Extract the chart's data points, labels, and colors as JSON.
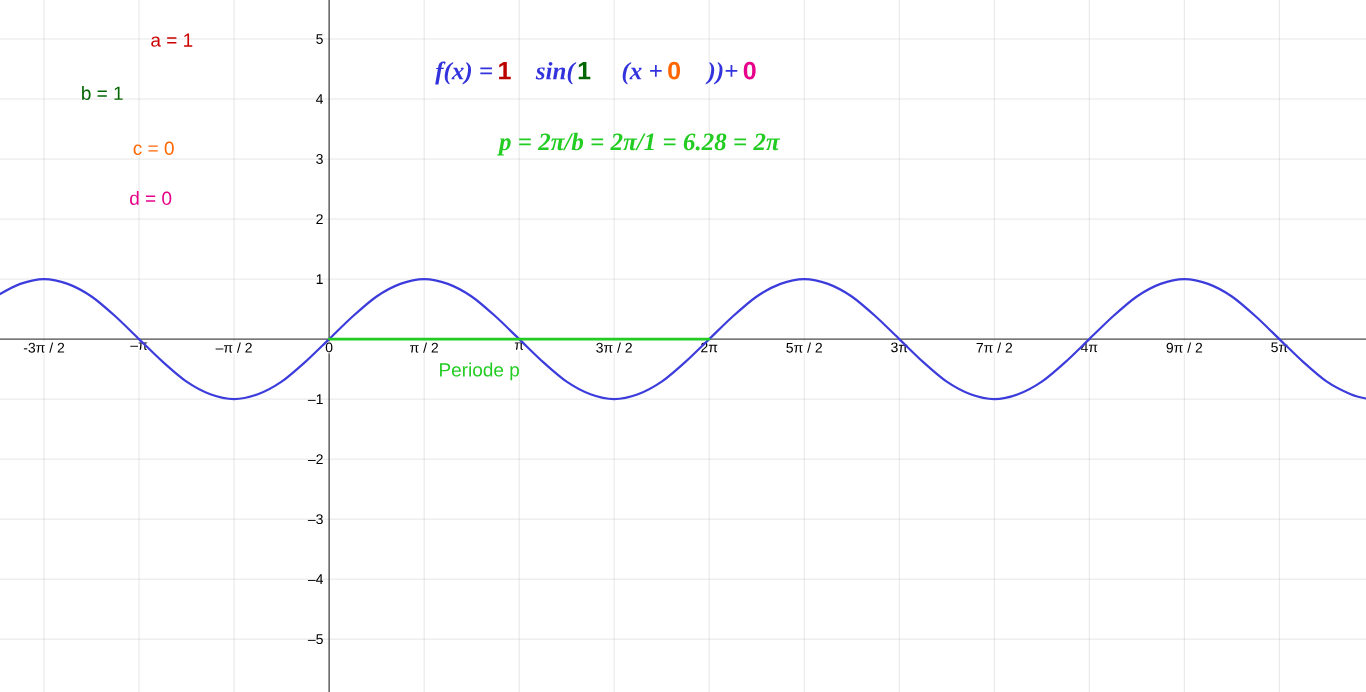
{
  "chart_data": {
    "type": "line",
    "series": [
      {
        "color": "#3c3cdc",
        "x": [
          -5.44,
          -5.105,
          -4.712,
          -4.32,
          -3.927,
          -3.534,
          -3.142,
          -2.749,
          -2.356,
          -1.963,
          -1.571,
          -1.178,
          -0.785,
          -0.393,
          0,
          0.393,
          0.785,
          1.178,
          1.571,
          1.963,
          2.356,
          2.749,
          3.142,
          3.534,
          3.927,
          4.32,
          4.712,
          5.105,
          5.498,
          5.89,
          6.283,
          6.676,
          7.069,
          7.461,
          7.854,
          8.247,
          8.639,
          9.032,
          9.425,
          9.817,
          10.21,
          10.603,
          10.996,
          11.388,
          11.781,
          12.174,
          12.566,
          12.959,
          13.352,
          13.744,
          14.137,
          14.53,
          14.923,
          15.315,
          15.708,
          16.101,
          16.493,
          16.886,
          17.14
        ],
        "values": [
          0.75,
          0.92,
          1,
          0.92,
          0.71,
          0.38,
          0,
          -0.38,
          -0.71,
          -0.92,
          -1,
          -0.92,
          -0.71,
          -0.38,
          0,
          0.38,
          0.71,
          0.92,
          1,
          0.92,
          0.71,
          0.38,
          0,
          -0.38,
          -0.71,
          -0.92,
          -1,
          -0.92,
          -0.71,
          -0.38,
          0,
          0.38,
          0.71,
          0.92,
          1,
          0.92,
          0.71,
          0.38,
          0,
          -0.38,
          -0.71,
          -0.92,
          -1,
          -0.92,
          -0.71,
          -0.38,
          0,
          0.38,
          0.71,
          0.92,
          1,
          0.92,
          0.71,
          0.38,
          0,
          -0.38,
          -0.71,
          -0.92,
          -0.99
        ]
      },
      {
        "name": "Periode p",
        "color": "#22cc22",
        "x": [
          0,
          6.283
        ],
        "values": [
          0,
          0
        ]
      }
    ],
    "xlim": [
      -5.44,
      17.14
    ],
    "ylim": [
      -5.88,
      5.65
    ],
    "xticks": [
      {
        "value": -4.712,
        "label": "-3π / 2"
      },
      {
        "value": -3.142,
        "label": "–π"
      },
      {
        "value": -1.571,
        "label": "–π / 2"
      },
      {
        "value": 0,
        "label": "0"
      },
      {
        "value": 1.571,
        "label": "π / 2"
      },
      {
        "value": 3.142,
        "label": "π"
      },
      {
        "value": 4.712,
        "label": "3π / 2"
      },
      {
        "value": 6.283,
        "label": "2π"
      },
      {
        "value": 7.854,
        "label": "5π / 2"
      },
      {
        "value": 9.425,
        "label": "3π"
      },
      {
        "value": 10.996,
        "label": "7π / 2"
      },
      {
        "value": 12.566,
        "label": "4π"
      },
      {
        "value": 14.137,
        "label": "9π / 2"
      },
      {
        "value": 15.708,
        "label": "5π"
      }
    ],
    "yticks": [
      {
        "value": -5,
        "label": "–5"
      },
      {
        "value": -4,
        "label": "–4"
      },
      {
        "value": -3,
        "label": "–3"
      },
      {
        "value": -2,
        "label": "–2"
      },
      {
        "value": -1,
        "label": "–1"
      },
      1,
      2,
      3,
      4,
      5
    ],
    "grid": true,
    "annotations": [
      "a = 1",
      "b = 1",
      "c = 0",
      "d = 0",
      "f(x) =",
      "1",
      "sin(",
      "1",
      "(x +",
      "0",
      "))+",
      "0",
      "p = 2π/b = 2π/1 = 6.28 = 2π"
    ]
  }
}
